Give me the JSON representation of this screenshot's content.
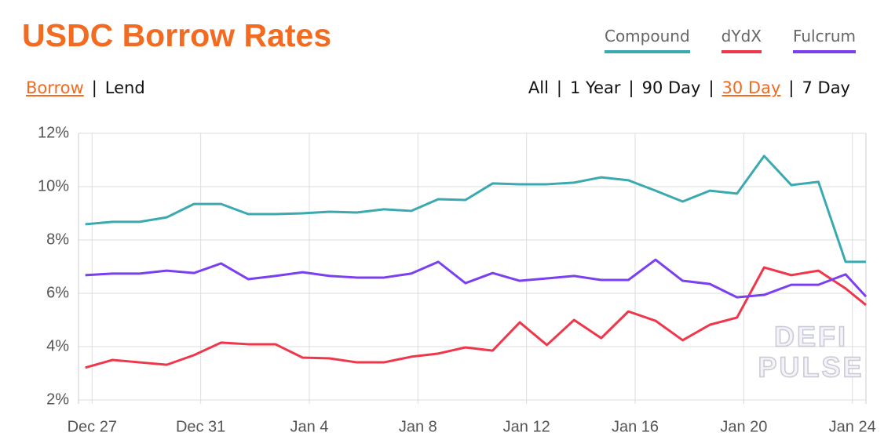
{
  "chart_data": {
    "type": "line",
    "title": "USDC Borrow Rates",
    "modes": [
      "Borrow",
      "Lend"
    ],
    "active_mode_index": 0,
    "ranges": [
      "All",
      "1 Year",
      "90 Day",
      "30 Day",
      "7 Day"
    ],
    "active_range_index": 3,
    "separator": "|",
    "watermark": [
      "DEFI",
      "PULSE"
    ],
    "x": [
      -0.25,
      0.75,
      1.75,
      2.75,
      3.75,
      4.75,
      5.75,
      6.75,
      7.75,
      8.75,
      9.75,
      10.75,
      11.75,
      12.75,
      13.75,
      14.75,
      15.75,
      16.75,
      17.75,
      18.75,
      19.75,
      20.75,
      21.75,
      22.75,
      23.75,
      24.75,
      25.75,
      26.75,
      27.75,
      28.5
    ],
    "xlim": [
      -0.5,
      28.5
    ],
    "xticks": [
      {
        "value": 0,
        "label": "Dec 27"
      },
      {
        "value": 4,
        "label": "Dec 31"
      },
      {
        "value": 8,
        "label": "Jan 4"
      },
      {
        "value": 12,
        "label": "Jan 8"
      },
      {
        "value": 16,
        "label": "Jan 12"
      },
      {
        "value": 20,
        "label": "Jan 16"
      },
      {
        "value": 24,
        "label": "Jan 20"
      },
      {
        "value": 28,
        "label": "Jan 24"
      }
    ],
    "ylim": [
      2,
      12
    ],
    "yticks": [
      {
        "value": 2,
        "label": "2%"
      },
      {
        "value": 4,
        "label": "4%"
      },
      {
        "value": 6,
        "label": "6%"
      },
      {
        "value": 8,
        "label": "8%"
      },
      {
        "value": 10,
        "label": "10%"
      },
      {
        "value": 12,
        "label": "12%"
      }
    ],
    "grid": true,
    "series": [
      {
        "name": "Compound",
        "color": "#3aa9b0",
        "values": [
          8.59,
          8.68,
          8.68,
          8.85,
          9.35,
          9.35,
          8.97,
          8.97,
          9.0,
          9.06,
          9.03,
          9.15,
          9.09,
          9.53,
          9.5,
          10.12,
          10.09,
          10.09,
          10.15,
          10.35,
          10.24,
          9.85,
          9.44,
          9.85,
          9.74,
          11.15,
          10.06,
          10.18,
          7.18,
          7.18
        ]
      },
      {
        "name": "dYdX",
        "color": "#f0364a",
        "values": [
          3.21,
          3.5,
          3.41,
          3.32,
          3.68,
          4.15,
          4.09,
          4.09,
          3.59,
          3.56,
          3.41,
          3.41,
          3.62,
          3.74,
          3.97,
          3.85,
          4.91,
          4.06,
          5.0,
          4.32,
          5.32,
          4.97,
          4.24,
          4.82,
          5.09,
          6.97,
          6.68,
          6.85,
          6.18,
          5.56
        ]
      },
      {
        "name": "Fulcrum",
        "color": "#7b3ff2",
        "values": [
          6.68,
          6.74,
          6.74,
          6.85,
          6.76,
          7.12,
          6.53,
          6.65,
          6.79,
          6.65,
          6.59,
          6.59,
          6.74,
          7.18,
          6.38,
          6.76,
          6.47,
          6.56,
          6.65,
          6.5,
          6.5,
          7.26,
          6.47,
          6.35,
          5.85,
          5.94,
          6.32,
          6.32,
          6.71,
          5.88
        ]
      }
    ]
  }
}
